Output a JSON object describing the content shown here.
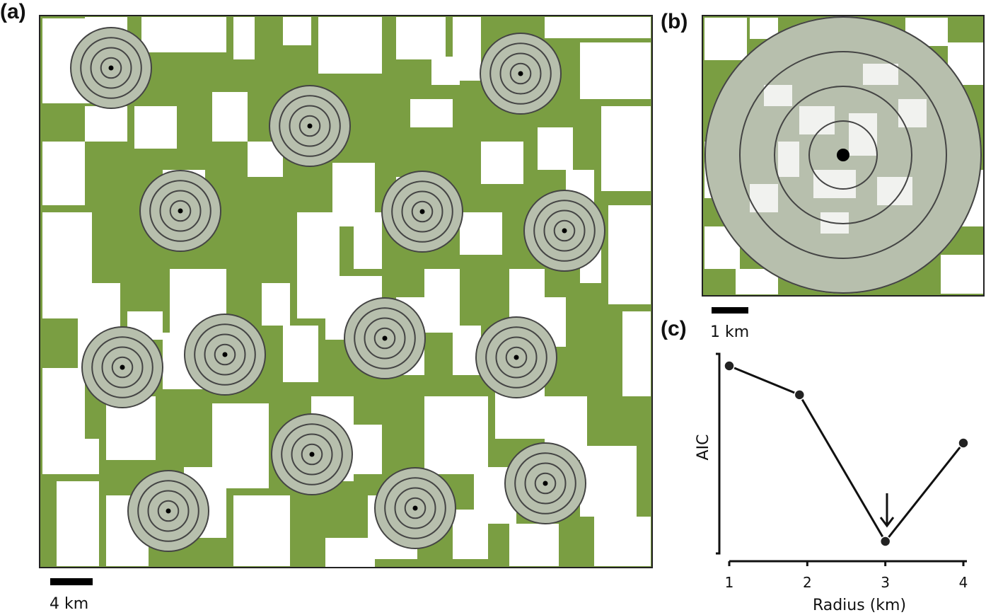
{
  "panels": {
    "a": {
      "label": "(a)",
      "scale_text": "4 km"
    },
    "b": {
      "label": "(b)",
      "scale_text": "1 km"
    },
    "c": {
      "label": "(c)"
    }
  },
  "colors": {
    "forest": "#7a9e42",
    "cleared": "#ffffff",
    "buffer": "#b7bfad",
    "ring": "#444444",
    "point": "#000000"
  },
  "map_a": {
    "site_count": 14,
    "rings_per_site": 4
  },
  "chart_data": {
    "type": "line",
    "x": [
      1,
      1.9,
      3,
      4
    ],
    "y": [
      0.93,
      0.78,
      0.02,
      0.53
    ],
    "ylabel": "AIC",
    "xlabel": "Radius (km)",
    "xticks": [
      "1",
      "2",
      "3",
      "4"
    ],
    "xlim": [
      1,
      4
    ],
    "y_tick_labels": "none",
    "annotation": {
      "type": "arrow",
      "points_to_x": 3,
      "meaning": "lowest AIC"
    }
  }
}
